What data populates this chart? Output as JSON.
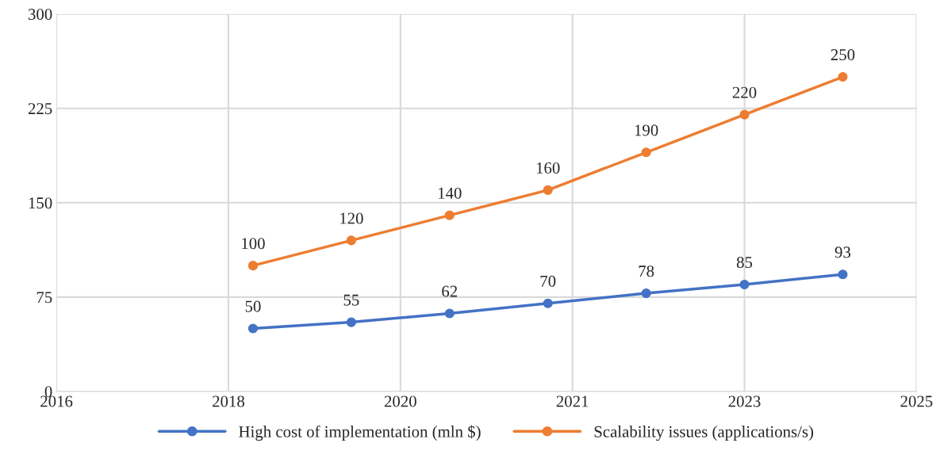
{
  "chart_data": {
    "type": "line",
    "x": [
      2018,
      2019,
      2020,
      2021,
      2022,
      2023,
      2024
    ],
    "series": [
      {
        "name": "High cost of implementation (mln $)",
        "color": "#4472c4",
        "values": [
          50,
          55,
          62,
          70,
          78,
          85,
          93
        ]
      },
      {
        "name": "Scalability issues (applications/s)",
        "color": "#ed7d31",
        "values": [
          100,
          120,
          140,
          160,
          190,
          220,
          250
        ]
      }
    ],
    "xlim": [
      2016,
      2024.75
    ],
    "xticks": [
      2016,
      {
        "value": 2017.75,
        "label": "2018"
      },
      {
        "value": 2019.5,
        "label": "2020"
      },
      {
        "value": 2021.25,
        "label": "2021"
      },
      2023,
      {
        "value": 2024.75,
        "label": "2025"
      }
    ],
    "ylim": [
      0,
      300
    ],
    "yticks": [
      0,
      75,
      150,
      225,
      300
    ],
    "grid": true,
    "legend": "bottom",
    "marker": "circle",
    "line_style": "solid",
    "data_labels": true
  }
}
